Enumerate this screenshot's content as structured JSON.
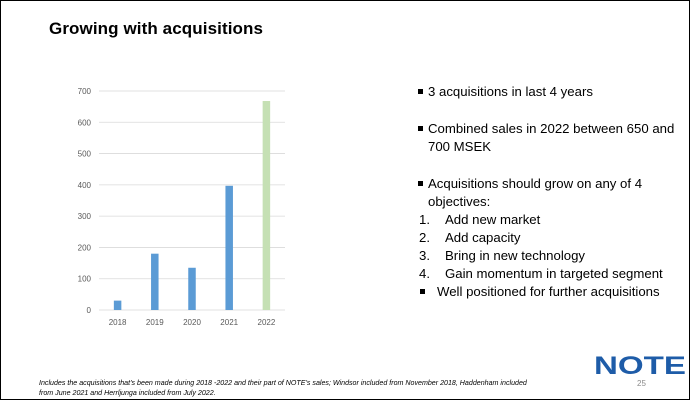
{
  "slide": {
    "title": "Growing with acquisitions",
    "page_number": "25"
  },
  "bullets": {
    "b1": "3 acquisitions in last 4 years",
    "b2": "Combined sales in 2022 between 650 and 700 MSEK",
    "b3": "Acquisitions should grow on any of 4 objectives:",
    "objectives": [
      {
        "n": "1.",
        "text": "Add new market"
      },
      {
        "n": "2.",
        "text": "Add capacity"
      },
      {
        "n": "3.",
        "text": "Bring in new technology"
      },
      {
        "n": "4.",
        "text": "Gain momentum in targeted segment"
      }
    ],
    "b4": "Well positioned for further acquisitions"
  },
  "footnote": "Includes the acquisitions that’s been made during 2018 -2022 and their part of NOTE’s sales; Windsor included from November 2018, Haddenham included from June 2021 and Herrljunga included from July 2022.",
  "logo": {
    "text": "NOTE",
    "color": "#1e5ca8"
  },
  "chart_data": {
    "type": "bar",
    "categories": [
      "2018",
      "2019",
      "2020",
      "2021",
      "2022"
    ],
    "values": [
      30,
      180,
      135,
      397,
      668
    ],
    "bar_colors": [
      "#5b9bd5",
      "#5b9bd5",
      "#5b9bd5",
      "#5b9bd5",
      "#c5e0b4"
    ],
    "ylim": [
      0,
      700
    ],
    "yticks": [
      "0",
      "100",
      "200",
      "300",
      "400",
      "500",
      "600",
      "700"
    ],
    "grid": true,
    "title": "",
    "xlabel": "",
    "ylabel": ""
  }
}
